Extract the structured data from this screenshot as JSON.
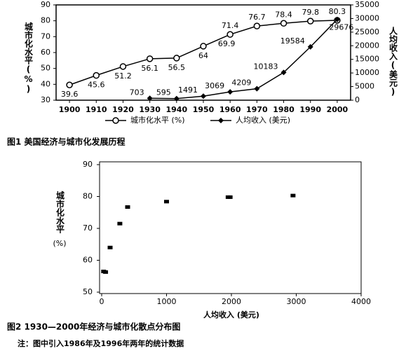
{
  "chart_data": [
    {
      "type": "line",
      "caption": "图1 美国经济与城市化发展历程",
      "x": [
        1900,
        1910,
        1920,
        1930,
        1940,
        1950,
        1960,
        1970,
        1980,
        1990,
        2000
      ],
      "xlim": [
        1895,
        2005
      ],
      "xticks": [
        1900,
        1910,
        1920,
        1930,
        1940,
        1950,
        1960,
        1970,
        1980,
        1990,
        2000
      ],
      "ylim": [
        30,
        90
      ],
      "yticks": [
        30,
        40,
        50,
        60,
        70,
        80,
        90
      ],
      "y2lim": [
        0,
        35000
      ],
      "y2ticks": [
        0,
        5000,
        10000,
        15000,
        20000,
        25000,
        30000,
        35000
      ],
      "y_label": "城市化水平(%)",
      "y2_label": "人均收入(美元)",
      "series": [
        {
          "name": "城市化水平 (%)",
          "color": "#000000",
          "marker": "circle",
          "values": [
            39.6,
            45.6,
            51.2,
            56.1,
            56.5,
            64,
            71.4,
            76.7,
            78.4,
            79.8,
            80.3
          ]
        },
        {
          "name": "人均收入 (美元)",
          "color": "#000000",
          "marker": "diamond",
          "axis": "y2",
          "values": [
            null,
            null,
            null,
            703,
            595,
            1491,
            3069,
            4209,
            10183,
            19584,
            29676
          ]
        }
      ],
      "annotations": [
        "69.9"
      ]
    },
    {
      "type": "scatter",
      "caption": "图2 1930—2000年经济与城市化散点分布图",
      "note": "注：图中引入1986年及1996年两年的统计数据",
      "x": [
        30,
        60,
        130,
        280,
        400,
        1000,
        1950,
        1980,
        2950
      ],
      "values": [
        56.5,
        56.3,
        64,
        71.5,
        76.7,
        78.4,
        79.8,
        79.8,
        80.3
      ],
      "color": "#000000",
      "xlim": [
        0,
        4000
      ],
      "xticks": [
        0,
        1000,
        2000,
        3000,
        4000
      ],
      "ylim": [
        50,
        90
      ],
      "yticks": [
        50,
        60,
        70,
        80,
        90
      ],
      "x_label": "人均收入 (美元)",
      "y_label": "城市化水平",
      "y_unit": "(%)"
    }
  ]
}
